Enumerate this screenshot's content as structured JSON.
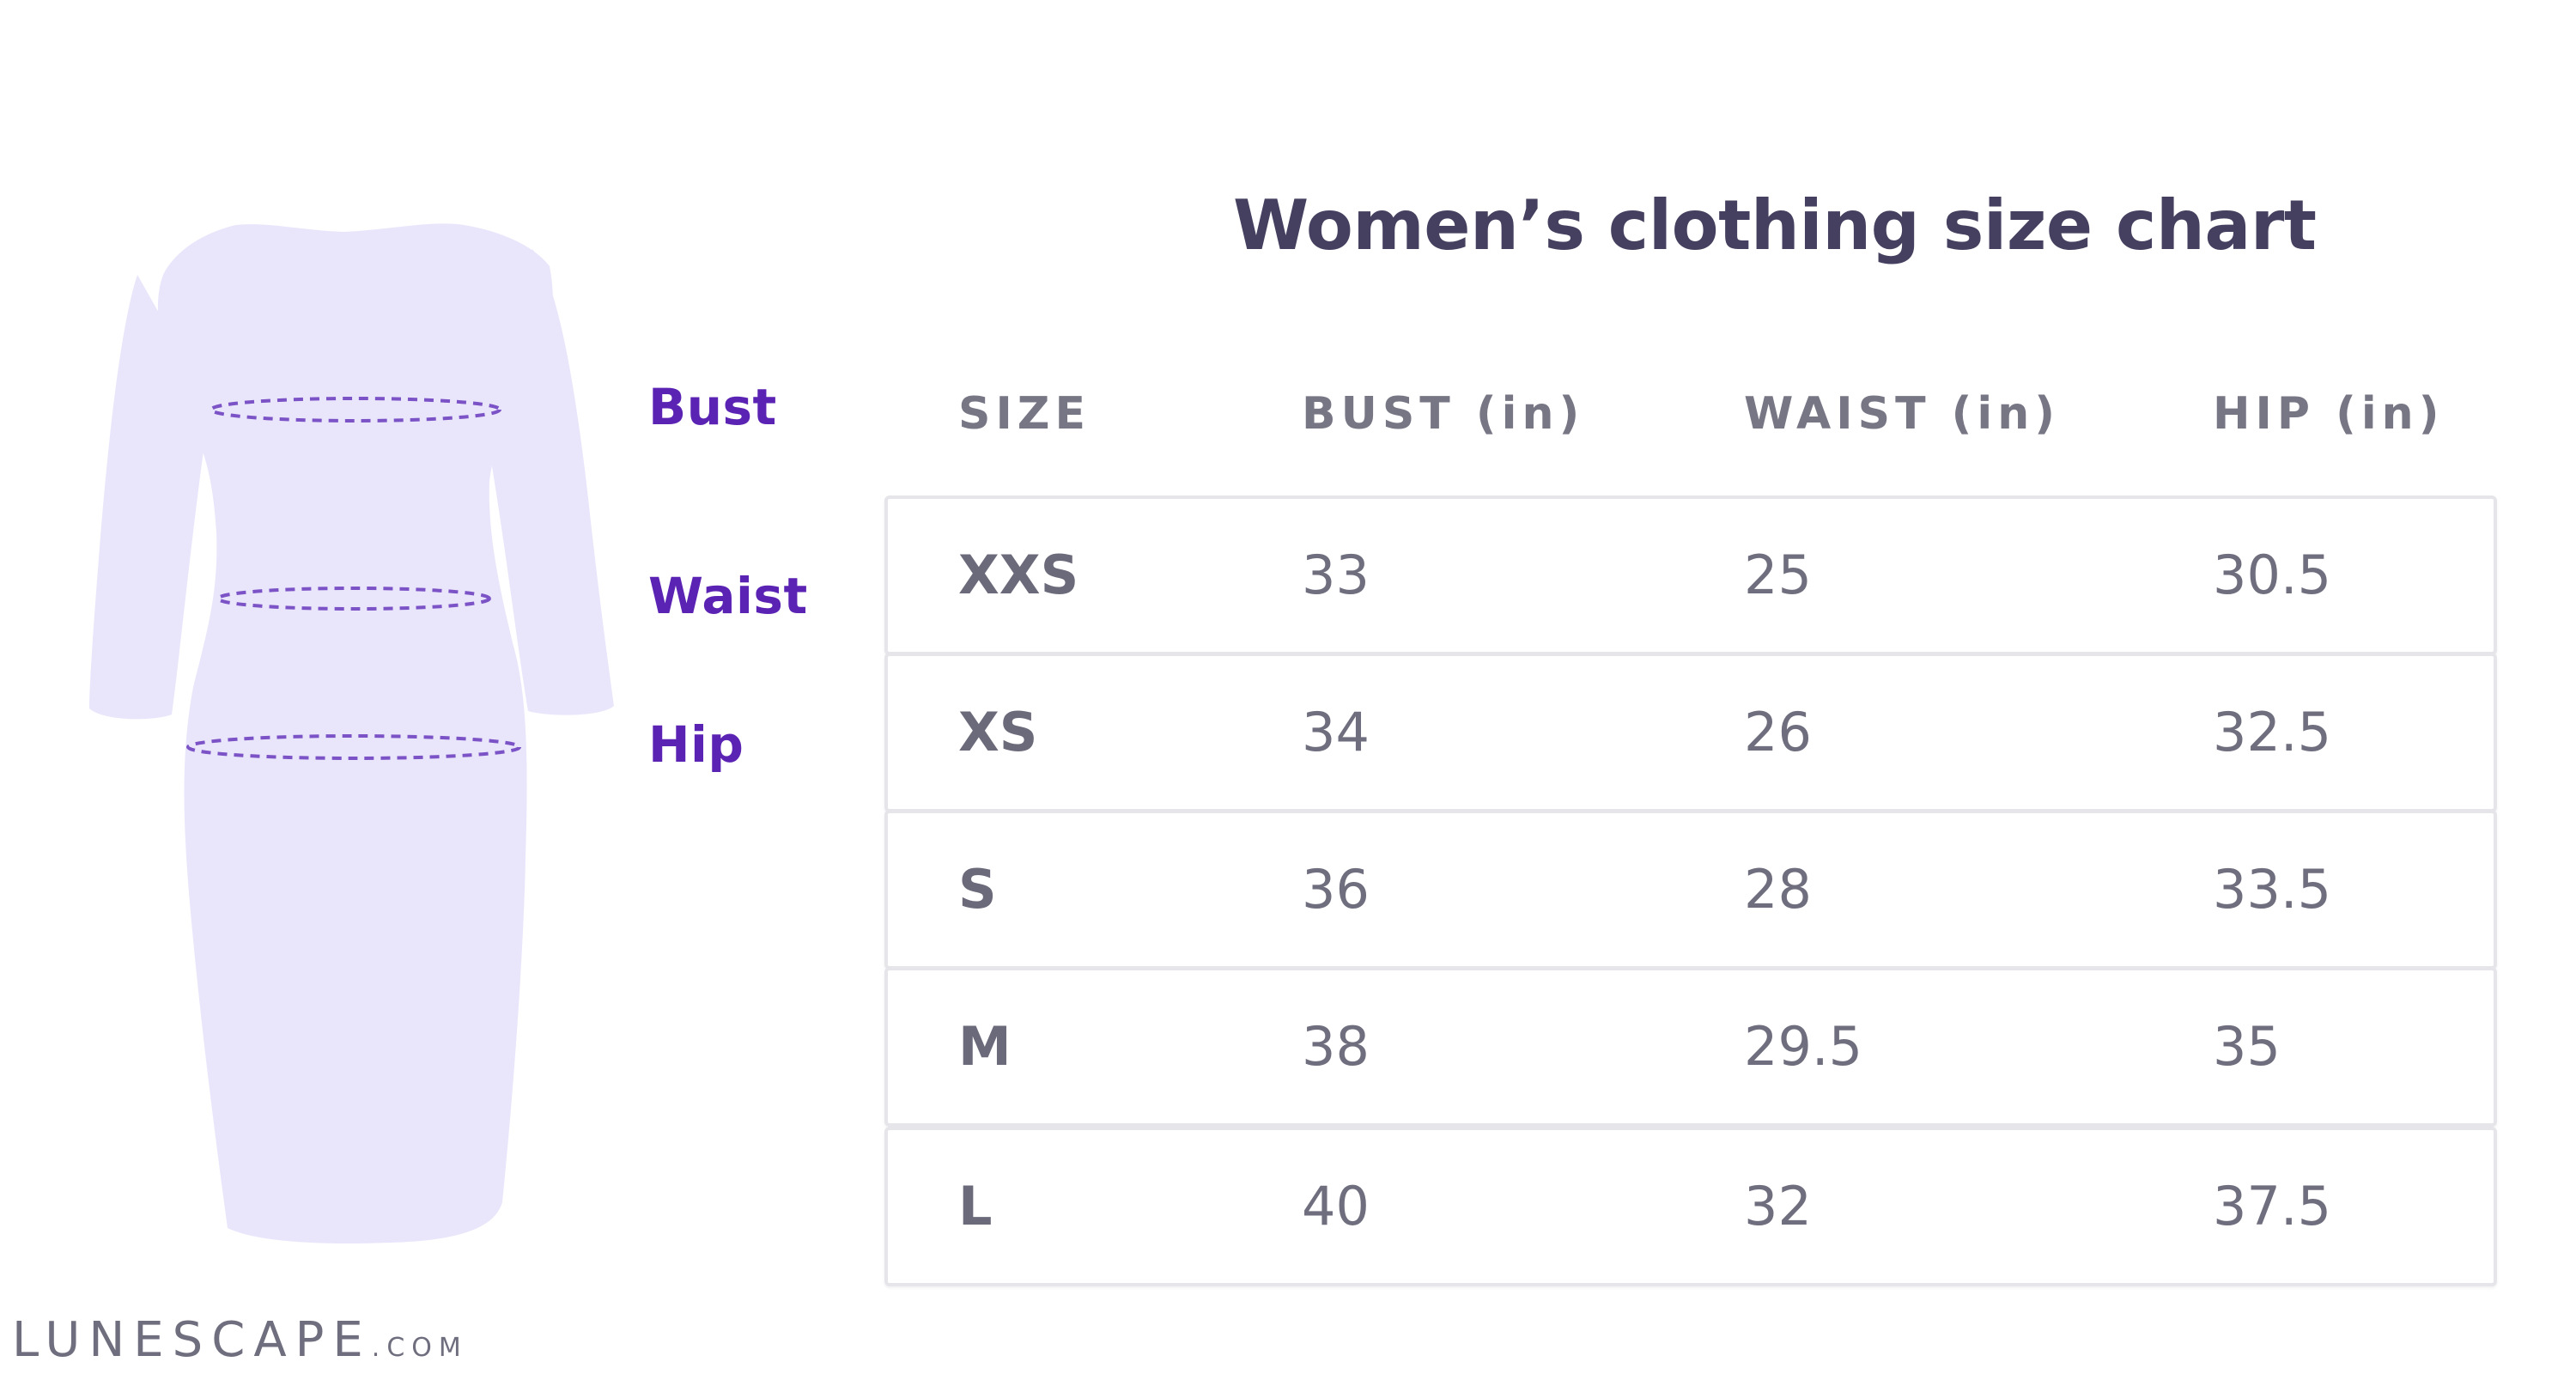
{
  "labels": {
    "bust": "Bust",
    "waist": "Waist",
    "hip": "Hip"
  },
  "logo": {
    "main": "LUNESCAPE",
    "suffix": ".COM"
  },
  "chart_data": {
    "type": "table",
    "title": "Women’s clothing size chart",
    "columns": [
      "SIZE",
      "BUST (in)",
      "WAIST (in)",
      "HIP (in)"
    ],
    "rows": [
      [
        "XXS",
        "33",
        "25",
        "30.5"
      ],
      [
        "XS",
        "34",
        "26",
        "32.5"
      ],
      [
        "S",
        "36",
        "28",
        "33.5"
      ],
      [
        "M",
        "38",
        "29.5",
        "35"
      ],
      [
        "L",
        "40",
        "32",
        "37.5"
      ]
    ]
  },
  "colors": {
    "dress_fill": "#e9e6fb",
    "measure_line": "#7b53c6",
    "label_purple": "#5b23b3",
    "title_text": "#45405f",
    "header_text": "#777685",
    "cell_text": "#6f6e7e",
    "row_border": "#e6e6ea"
  },
  "icons": {
    "dress": "dress-silhouette-icon"
  }
}
